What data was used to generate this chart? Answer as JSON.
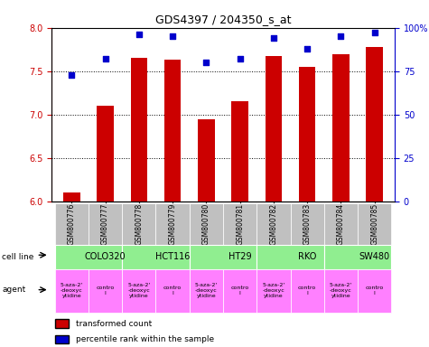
{
  "title": "GDS4397 / 204350_s_at",
  "samples": [
    "GSM800776",
    "GSM800777",
    "GSM800778",
    "GSM800779",
    "GSM800780",
    "GSM800781",
    "GSM800782",
    "GSM800783",
    "GSM800784",
    "GSM800785"
  ],
  "red_values": [
    6.1,
    7.1,
    7.65,
    7.63,
    6.95,
    7.15,
    7.67,
    7.55,
    7.7,
    7.78
  ],
  "blue_values": [
    73,
    82,
    96,
    95,
    80,
    82,
    94,
    88,
    95,
    97
  ],
  "ylim_left": [
    6.0,
    8.0
  ],
  "ylim_right": [
    0,
    100
  ],
  "yticks_left": [
    6.0,
    6.5,
    7.0,
    7.5,
    8.0
  ],
  "yticks_right": [
    0,
    25,
    50,
    75,
    100
  ],
  "ytick_labels_right": [
    "0",
    "25",
    "50",
    "75",
    "100%"
  ],
  "cell_lines": [
    "COLO320",
    "HCT116",
    "HT29",
    "RKO",
    "SW480"
  ],
  "cell_line_spans": [
    [
      0,
      2
    ],
    [
      2,
      4
    ],
    [
      4,
      6
    ],
    [
      6,
      8
    ],
    [
      8,
      10
    ]
  ],
  "cell_line_color": "#90EE90",
  "agent_drug": "5-aza-2'\n-deoxyc\nytidine",
  "agent_ctrl": "contro\nl",
  "agent_ctrl9": "contro\nl",
  "agent_drug_color": "#FF80FF",
  "agent_ctrl_color": "#FF80FF",
  "bar_color": "#CC0000",
  "dot_color": "#0000CC",
  "sample_bg_color": "#C0C0C0",
  "grid_color": "#000000",
  "left_axis_color": "#CC0000",
  "right_axis_color": "#0000CC"
}
